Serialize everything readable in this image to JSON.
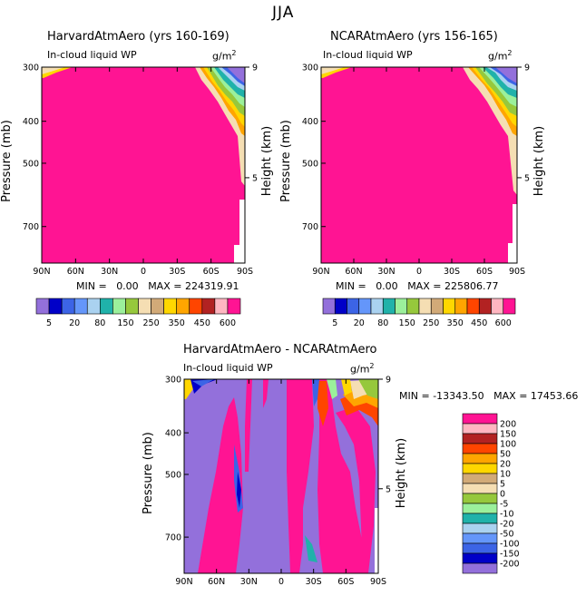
{
  "figure": {
    "title": "JJA"
  },
  "chart_data": [
    {
      "type": "heatmap",
      "title": "HarvardAtmAero (yrs 160-169)",
      "subtitle": "In-cloud liquid WP",
      "units": "g/m",
      "units_exp": "2",
      "xlabel": "",
      "ylabel": "Pressure (mb)",
      "y2label": "Height (km)",
      "x_ticks": [
        "90N",
        "60N",
        "30N",
        "0",
        "30S",
        "60S",
        "90S"
      ],
      "y_ticks": [
        "300",
        "400",
        "500",
        "700"
      ],
      "y2_ticks": [
        "9",
        "5"
      ],
      "ylim": [
        300,
        850
      ],
      "y_scale": "log-pressure",
      "stats": {
        "min_label": "MIN =",
        "min": "0.00",
        "max_label": "MAX =",
        "max": "224319.91"
      },
      "colorbar_labels": [
        "5",
        "20",
        "80",
        "150",
        "250",
        "350",
        "450",
        "600"
      ]
    },
    {
      "type": "heatmap",
      "title": "NCARAtmAero (yrs 156-165)",
      "subtitle": "In-cloud liquid WP",
      "units": "g/m",
      "units_exp": "2",
      "xlabel": "",
      "ylabel": "Pressure (mb)",
      "y2label": "Height (km)",
      "x_ticks": [
        "90N",
        "60N",
        "30N",
        "0",
        "30S",
        "60S",
        "90S"
      ],
      "y_ticks": [
        "300",
        "400",
        "500",
        "700"
      ],
      "y2_ticks": [
        "9",
        "5"
      ],
      "ylim": [
        300,
        850
      ],
      "y_scale": "log-pressure",
      "stats": {
        "min_label": "MIN =",
        "min": "0.00",
        "max_label": "MAX =",
        "max": "225806.77"
      },
      "colorbar_labels": [
        "5",
        "20",
        "80",
        "150",
        "250",
        "350",
        "450",
        "600"
      ]
    },
    {
      "type": "heatmap",
      "title": "HarvardAtmAero - NCARAtmAero",
      "subtitle": "In-cloud liquid WP",
      "units": "g/m",
      "units_exp": "2",
      "xlabel": "",
      "ylabel": "Pressure (mb)",
      "y2label": "Height (km)",
      "x_ticks": [
        "90N",
        "60N",
        "30N",
        "0",
        "30S",
        "60S",
        "90S"
      ],
      "y_ticks": [
        "300",
        "400",
        "500",
        "700"
      ],
      "y2_ticks": [
        "9",
        "5"
      ],
      "ylim": [
        300,
        850
      ],
      "y_scale": "log-pressure",
      "stats": {
        "min_label": "MIN =",
        "min": "-13343.50",
        "max_label": "MAX =",
        "max": "17453.66"
      },
      "colorbar_labels": [
        "200",
        "150",
        "100",
        "50",
        "20",
        "10",
        "5",
        "0",
        "-5",
        "-10",
        "-20",
        "-50",
        "-100",
        "-150",
        "-200"
      ]
    }
  ],
  "colors": {
    "abs_scale": [
      "#9370db",
      "#0000c8",
      "#3c64e6",
      "#6496fa",
      "#aad2f0",
      "#20b2aa",
      "#9bf09b",
      "#96c83c",
      "#f5deb3",
      "#d2aa78",
      "#ffd700",
      "#ffa500",
      "#ff4500",
      "#b22222",
      "#ffb6c1",
      "#ff1493"
    ],
    "diff_scale": [
      "#9370db",
      "#0000c8",
      "#3c64e6",
      "#6496fa",
      "#aad2f0",
      "#20b2aa",
      "#9bf09b",
      "#96c83c",
      "#f5deb3",
      "#d2aa78",
      "#ffd700",
      "#ffa500",
      "#ff4500",
      "#b22222",
      "#ffb6c1",
      "#ff1493"
    ],
    "fill_main": "#ff1493",
    "fill_diff": "#9370db"
  }
}
